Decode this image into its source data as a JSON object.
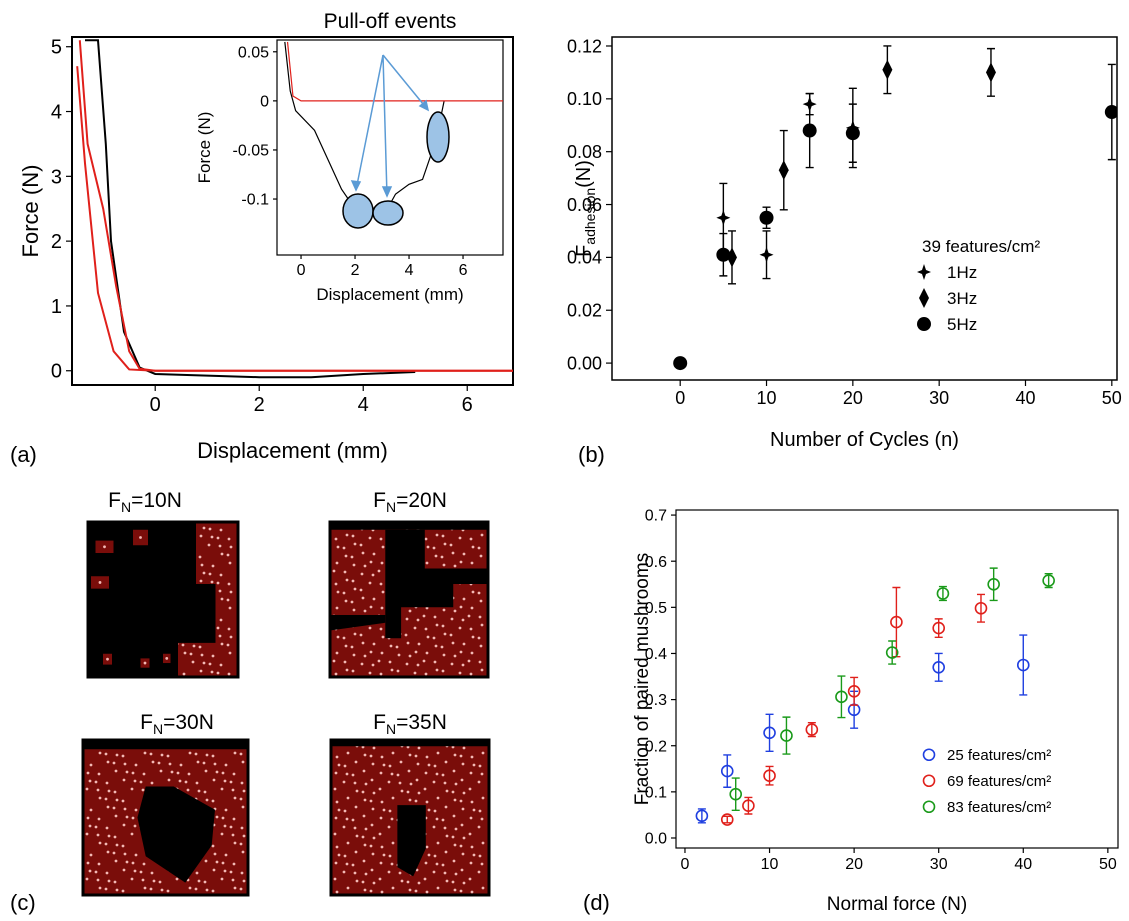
{
  "panel_labels": [
    "(a)",
    "(b)",
    "(c)",
    "(d)"
  ],
  "images": [
    {
      "label": "F",
      "sub": "N",
      "rest": "=10N"
    },
    {
      "label": "F",
      "sub": "N",
      "rest": "=20N"
    },
    {
      "label": "F",
      "sub": "N",
      "rest": "=30N"
    },
    {
      "label": "F",
      "sub": "N",
      "rest": "=35N"
    }
  ],
  "chart_data": [
    {
      "type": "line",
      "xlabel": "Displacement (mm)",
      "ylabel": "Force (N)",
      "xlim": [
        -1.6,
        6.88
      ],
      "ylim": [
        -0.22,
        5.15
      ],
      "xticks": [
        0,
        2,
        4,
        6
      ],
      "yticks": [
        0,
        1,
        2,
        3,
        4,
        5
      ],
      "series": [
        {
          "color": "#000000",
          "x": [
            -1.35,
            -1.1,
            -0.95,
            -0.85,
            -0.6,
            -0.3,
            0,
            2,
            3,
            4,
            5
          ],
          "values": [
            5.1,
            5.1,
            3.5,
            2.0,
            0.6,
            0.05,
            -0.05,
            -0.1,
            -0.1,
            -0.05,
            -0.02
          ]
        },
        {
          "color": "#e0201b",
          "x": [
            -1.45,
            -1.3,
            -1.0,
            -0.75,
            -0.5,
            -0.3,
            0,
            6.88
          ],
          "values": [
            5.1,
            3.5,
            2.5,
            1.3,
            0.3,
            0.03,
            0,
            0
          ]
        },
        {
          "color": "#e0201b",
          "x": [
            -1.5,
            -1.35,
            -1.1,
            -0.8,
            -0.5,
            0,
            6.88
          ],
          "values": [
            4.7,
            3.2,
            1.2,
            0.3,
            0.02,
            0,
            0
          ]
        }
      ]
    },
    {
      "type": "line",
      "title": "Pull-off events",
      "xlabel": "Displacement (mm)",
      "ylabel": "Force (N)",
      "xlim": [
        -0.89,
        7.48
      ],
      "ylim": [
        -0.157,
        0.062
      ],
      "xticks": [
        0,
        2,
        4,
        6
      ],
      "yticks": [
        0.05,
        0,
        -0.05,
        -0.1
      ],
      "series": [
        {
          "color": "#000000",
          "x": [
            -0.6,
            -0.4,
            -0.2,
            0.5,
            1.0,
            1.5,
            2,
            2.5,
            3,
            3.5,
            4,
            4.5,
            5,
            5.3
          ],
          "values": [
            0.06,
            0.01,
            -0.01,
            -0.03,
            -0.06,
            -0.09,
            -0.11,
            -0.115,
            -0.12,
            -0.095,
            -0.085,
            -0.08,
            -0.04,
            0
          ]
        },
        {
          "color": "#e0201b",
          "x": [
            -0.5,
            -0.3,
            0,
            7.48
          ],
          "values": [
            0.06,
            0.005,
            0,
            0
          ]
        }
      ]
    },
    {
      "type": "scatter",
      "xlabel": "Number of Cycles (n)",
      "ylabel": {
        "main": "F",
        "sub": "adhesion",
        "rest": "(N)"
      },
      "legend_title": "39 features/cm²",
      "xlim": [
        -7.9,
        50.6
      ],
      "ylim": [
        -0.0064,
        0.1234
      ],
      "xticks": [
        0,
        10,
        20,
        30,
        40,
        50
      ],
      "yticks": [
        {
          "value": 0,
          "label": "0.00"
        },
        {
          "value": 0.02,
          "label": "0.02"
        },
        {
          "value": 0.04,
          "label": "0.04"
        },
        {
          "value": 0.06,
          "label": "0.06"
        },
        {
          "value": 0.08,
          "label": "0.08"
        },
        {
          "value": 0.1,
          "label": "0.10"
        },
        {
          "value": 0.12,
          "label": "0.12"
        }
      ],
      "series": [
        {
          "name": "1Hz",
          "marker": "star",
          "color": "#000000",
          "x": [
            5,
            10,
            15,
            20
          ],
          "values": [
            0.055,
            0.041,
            0.098,
            0.089
          ],
          "errors": [
            0.013,
            0.009,
            0.004,
            0.015
          ]
        },
        {
          "name": "3Hz",
          "marker": "diamond",
          "color": "#000000",
          "x": [
            6,
            12,
            24,
            36
          ],
          "values": [
            0.04,
            0.073,
            0.111,
            0.11
          ],
          "errors": [
            0.01,
            0.015,
            0.009,
            0.009
          ]
        },
        {
          "name": "5Hz",
          "marker": "circle",
          "color": "#000000",
          "x": [
            0,
            5,
            10,
            15,
            20,
            50
          ],
          "values": [
            0,
            0.041,
            0.055,
            0.088,
            0.087,
            0.095
          ],
          "errors": [
            0,
            0.008,
            0.004,
            0.014,
            0.011,
            0.018
          ]
        }
      ]
    },
    {
      "type": "scatter",
      "xlabel": "Normal force (N)",
      "ylabel": "Fraction of paired mushrooms",
      "xlim": [
        -1.06,
        51.2
      ],
      "ylim": [
        -0.0217,
        0.711
      ],
      "xticks": [
        0,
        10,
        20,
        30,
        40,
        50
      ],
      "yticks": [
        {
          "value": 0,
          "label": "0.0"
        },
        0.1,
        0.2,
        0.3,
        0.4,
        0.5,
        0.6,
        0.7
      ],
      "series": [
        {
          "name": "25 features/cm²",
          "marker": "open-circle",
          "color": "#1f3fe0",
          "x": [
            2,
            5,
            10,
            20,
            30,
            40
          ],
          "values": [
            0.048,
            0.145,
            0.228,
            0.278,
            0.37,
            0.375
          ],
          "errors": [
            0.015,
            0.035,
            0.04,
            0.04,
            0.03,
            0.065
          ]
        },
        {
          "name": "69 features/cm²",
          "marker": "open-circle",
          "color": "#e0201b",
          "x": [
            5,
            7.5,
            10,
            15,
            20,
            25,
            30,
            35
          ],
          "values": [
            0.04,
            0.07,
            0.135,
            0.235,
            0.318,
            0.468,
            0.455,
            0.498
          ],
          "errors": [
            0.007,
            0.018,
            0.02,
            0.015,
            0.03,
            0.075,
            0.02,
            0.03
          ]
        },
        {
          "name": "83 features/cm²",
          "marker": "open-circle",
          "color": "#1a9a1a",
          "x": [
            6,
            12,
            18.5,
            24.5,
            30.5,
            36.5,
            43
          ],
          "values": [
            0.095,
            0.222,
            0.306,
            0.402,
            0.53,
            0.55,
            0.558
          ],
          "errors": [
            0.035,
            0.04,
            0.045,
            0.025,
            0.015,
            0.035,
            0.015
          ]
        }
      ]
    }
  ]
}
